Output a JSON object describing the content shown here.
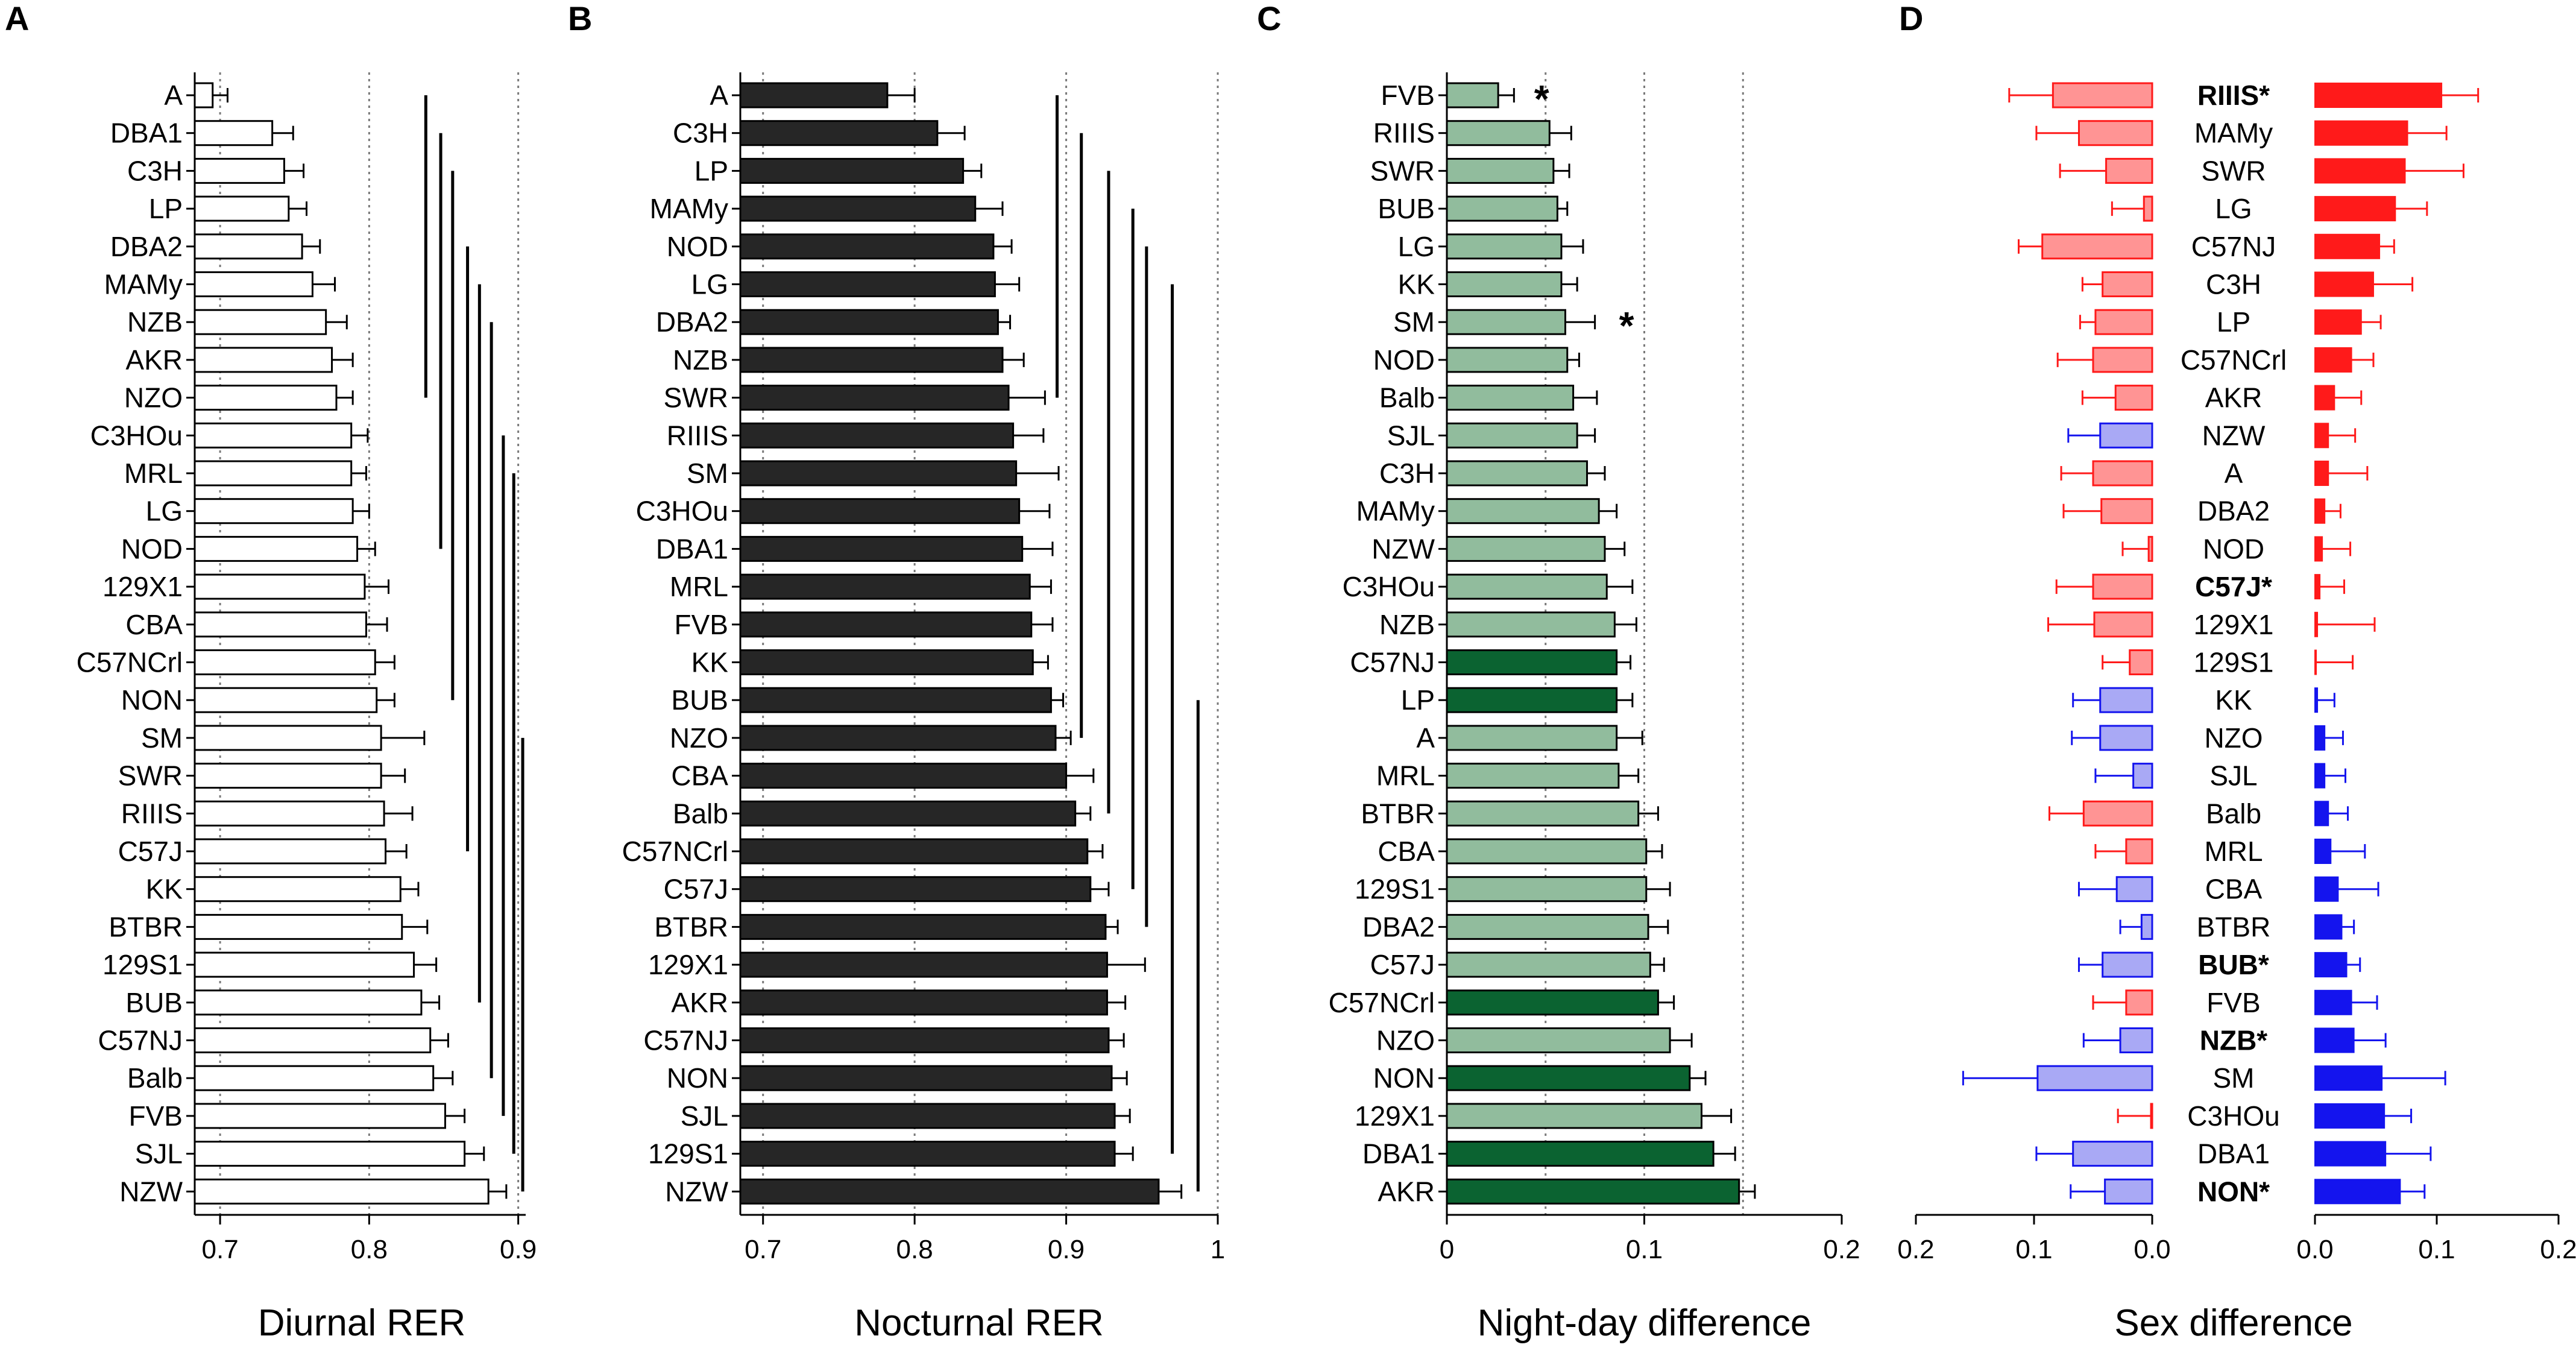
{
  "chart_data": [
    {
      "panel": "A",
      "type": "bar",
      "orientation": "horizontal",
      "xlabel": "Diurnal RER",
      "xlim": [
        0.685,
        0.905
      ],
      "ticks": [
        0.7,
        0.8,
        0.9
      ],
      "tick_labels": [
        "0.7",
        "0.8",
        "0.9"
      ],
      "gridlines": [
        0.7,
        0.8,
        0.9
      ],
      "bar_fill": "#ffffff",
      "categories": [
        "A",
        "DBA1",
        "C3H",
        "LP",
        "DBA2",
        "MAMy",
        "NZB",
        "AKR",
        "NZO",
        "C3HOu",
        "MRL",
        "LG",
        "NOD",
        "129X1",
        "CBA",
        "C57NCrl",
        "NON",
        "SM",
        "SWR",
        "RIIIS",
        "C57J",
        "KK",
        "BTBR",
        "129S1",
        "BUB",
        "C57NJ",
        "Balb",
        "FVB",
        "SJL",
        "NZW"
      ],
      "values": [
        0.695,
        0.735,
        0.743,
        0.746,
        0.755,
        0.762,
        0.771,
        0.775,
        0.778,
        0.788,
        0.788,
        0.789,
        0.792,
        0.797,
        0.798,
        0.804,
        0.805,
        0.808,
        0.808,
        0.81,
        0.811,
        0.821,
        0.822,
        0.83,
        0.835,
        0.841,
        0.843,
        0.851,
        0.864,
        0.88
      ],
      "errors": [
        0.01,
        0.014,
        0.013,
        0.012,
        0.012,
        0.015,
        0.014,
        0.014,
        0.011,
        0.011,
        0.01,
        0.011,
        0.012,
        0.016,
        0.014,
        0.013,
        0.012,
        0.029,
        0.016,
        0.019,
        0.014,
        0.012,
        0.017,
        0.015,
        0.012,
        0.012,
        0.013,
        0.013,
        0.013,
        0.012
      ],
      "significance_lines": [
        {
          "x": 0.838,
          "from": "A",
          "to": "NZO"
        },
        {
          "x": 0.848,
          "from": "DBA1",
          "to": "NOD"
        },
        {
          "x": 0.856,
          "from": "C3H",
          "to": "NON"
        },
        {
          "x": 0.866,
          "from": "DBA2",
          "to": "C57J"
        },
        {
          "x": 0.874,
          "from": "MAMy",
          "to": "BUB"
        },
        {
          "x": 0.882,
          "from": "NZB",
          "to": "Balb"
        },
        {
          "x": 0.89,
          "from": "C3HOu",
          "to": "FVB"
        },
        {
          "x": 0.897,
          "from": "MRL",
          "to": "SJL"
        },
        {
          "x": 0.903,
          "from": "SM",
          "to": "NZW"
        }
      ]
    },
    {
      "panel": "B",
      "type": "bar",
      "orientation": "horizontal",
      "xlabel": "Nocturnal RER",
      "xlim": [
        0.685,
        1.0
      ],
      "ticks": [
        0.7,
        0.8,
        0.9,
        1.0
      ],
      "tick_labels": [
        "0.7",
        "0.8",
        "0.9",
        "1"
      ],
      "gridlines": [
        0.7,
        0.8,
        0.9,
        1.0
      ],
      "bar_fill": "#262626",
      "categories": [
        "A",
        "C3H",
        "LP",
        "MAMy",
        "NOD",
        "LG",
        "DBA2",
        "NZB",
        "SWR",
        "RIIIS",
        "SM",
        "C3HOu",
        "DBA1",
        "MRL",
        "FVB",
        "KK",
        "BUB",
        "NZO",
        "CBA",
        "Balb",
        "C57NCrl",
        "C57J",
        "BTBR",
        "129X1",
        "AKR",
        "C57NJ",
        "NON",
        "SJL",
        "129S1",
        "NZW"
      ],
      "values": [
        0.782,
        0.815,
        0.832,
        0.84,
        0.852,
        0.853,
        0.855,
        0.858,
        0.862,
        0.865,
        0.867,
        0.869,
        0.871,
        0.876,
        0.877,
        0.878,
        0.89,
        0.893,
        0.9,
        0.906,
        0.914,
        0.916,
        0.926,
        0.927,
        0.927,
        0.928,
        0.93,
        0.932,
        0.932,
        0.961
      ],
      "errors": [
        0.018,
        0.018,
        0.012,
        0.018,
        0.012,
        0.016,
        0.008,
        0.014,
        0.024,
        0.02,
        0.028,
        0.02,
        0.02,
        0.014,
        0.014,
        0.01,
        0.008,
        0.01,
        0.018,
        0.01,
        0.01,
        0.012,
        0.008,
        0.025,
        0.012,
        0.01,
        0.01,
        0.01,
        0.012,
        0.015
      ],
      "significance_lines": [
        {
          "x": 0.894,
          "from": "A",
          "to": "SWR"
        },
        {
          "x": 0.91,
          "from": "C3H",
          "to": "NZO"
        },
        {
          "x": 0.928,
          "from": "LP",
          "to": "Balb"
        },
        {
          "x": 0.944,
          "from": "MAMy",
          "to": "C57J"
        },
        {
          "x": 0.953,
          "from": "NOD",
          "to": "BTBR"
        },
        {
          "x": 0.97,
          "from": "LG",
          "to": "129S1"
        },
        {
          "x": 0.987,
          "from": "BUB",
          "to": "NZW"
        }
      ]
    },
    {
      "panel": "C",
      "type": "bar",
      "orientation": "horizontal",
      "xlabel": "Night-day difference",
      "xlim": [
        0.0,
        0.2
      ],
      "ticks": [
        0.0,
        0.1,
        0.2
      ],
      "tick_labels": [
        "0",
        "0.1",
        "0.2"
      ],
      "gridlines": [
        0.05,
        0.1,
        0.15
      ],
      "colors": {
        "light": "#91bc9d",
        "dark": "#0b6331"
      },
      "categories": [
        "FVB",
        "RIIIS",
        "SWR",
        "BUB",
        "LG",
        "KK",
        "SM",
        "NOD",
        "Balb",
        "SJL",
        "C3H",
        "MAMy",
        "NZW",
        "C3HOu",
        "NZB",
        "C57NJ",
        "LP",
        "A",
        "MRL",
        "BTBR",
        "CBA",
        "129S1",
        "DBA2",
        "C57J",
        "C57NCrl",
        "NZO",
        "NON",
        "129X1",
        "DBA1",
        "AKR"
      ],
      "values": [
        0.026,
        0.052,
        0.054,
        0.056,
        0.058,
        0.058,
        0.06,
        0.061,
        0.064,
        0.066,
        0.071,
        0.077,
        0.08,
        0.081,
        0.085,
        0.086,
        0.086,
        0.086,
        0.087,
        0.097,
        0.101,
        0.101,
        0.102,
        0.103,
        0.107,
        0.113,
        0.123,
        0.129,
        0.135,
        0.148
      ],
      "errors": [
        0.008,
        0.011,
        0.008,
        0.005,
        0.011,
        0.008,
        0.015,
        0.006,
        0.012,
        0.009,
        0.009,
        0.009,
        0.01,
        0.013,
        0.011,
        0.007,
        0.008,
        0.013,
        0.01,
        0.01,
        0.008,
        0.012,
        0.01,
        0.007,
        0.008,
        0.011,
        0.008,
        0.015,
        0.011,
        0.008
      ],
      "dark_bars": [
        "C57NJ",
        "LP",
        "C57NCrl",
        "NON",
        "DBA1",
        "AKR"
      ],
      "annotations": [
        {
          "text": "*",
          "category": "FVB",
          "x": 0.048
        },
        {
          "text": "*",
          "category": "SM",
          "x": 0.091
        }
      ]
    },
    {
      "panel": "D",
      "type": "bar",
      "orientation": "horizontal",
      "xlabel": "Sex difference",
      "xlim_left": [
        0.2,
        0.0
      ],
      "xlim_right": [
        0.0,
        0.2
      ],
      "ticks_left": [
        "0.2",
        "0.1",
        "0.0"
      ],
      "ticks_right": [
        "0.0",
        "0.1",
        "0.2"
      ],
      "colors": {
        "red": "#ff1a1a",
        "red_light": "#ff9494",
        "blue": "#1414ee",
        "blue_light": "#a9a9f5"
      },
      "categories": [
        "RIIIS*",
        "MAMy",
        "SWR",
        "LG",
        "C57NJ",
        "C3H",
        "LP",
        "C57NCrl",
        "AKR",
        "NZW",
        "A",
        "DBA2",
        "NOD",
        "C57J*",
        "129X1",
        "129S1",
        "KK",
        "NZO",
        "SJL",
        "Balb",
        "MRL",
        "CBA",
        "BTBR",
        "BUB*",
        "FVB",
        "NZB*",
        "SM",
        "C3HOu",
        "DBA1",
        "NON*"
      ],
      "bold": [
        true,
        false,
        false,
        false,
        false,
        false,
        false,
        false,
        false,
        false,
        false,
        false,
        false,
        true,
        false,
        false,
        false,
        false,
        false,
        false,
        false,
        false,
        false,
        true,
        false,
        true,
        false,
        false,
        false,
        true
      ],
      "right_values": [
        0.104,
        0.076,
        0.074,
        0.066,
        0.053,
        0.048,
        0.038,
        0.03,
        0.016,
        0.011,
        0.011,
        0.008,
        0.006,
        0.004,
        0.002,
        0.001,
        0.002,
        0.008,
        0.008,
        0.011,
        0.013,
        0.019,
        0.022,
        0.026,
        0.03,
        0.032,
        0.055,
        0.057,
        0.058,
        0.07
      ],
      "right_errors": [
        0.03,
        0.032,
        0.048,
        0.026,
        0.012,
        0.032,
        0.016,
        0.018,
        0.022,
        0.022,
        0.032,
        0.013,
        0.023,
        0.02,
        0.047,
        0.03,
        0.014,
        0.015,
        0.017,
        0.016,
        0.028,
        0.033,
        0.01,
        0.011,
        0.021,
        0.026,
        0.052,
        0.022,
        0.037,
        0.02
      ],
      "right_colors": [
        "red",
        "red",
        "red",
        "red",
        "red",
        "red",
        "red",
        "red",
        "red",
        "red",
        "red",
        "red",
        "red",
        "red",
        "red",
        "red",
        "blue",
        "blue",
        "blue",
        "blue",
        "blue",
        "blue",
        "blue",
        "blue",
        "blue",
        "blue",
        "blue",
        "blue",
        "blue",
        "blue"
      ],
      "left_values": [
        0.084,
        0.062,
        0.039,
        0.007,
        0.093,
        0.042,
        0.048,
        0.05,
        0.031,
        0.044,
        0.05,
        0.043,
        0.003,
        0.05,
        0.049,
        0.019,
        0.044,
        0.044,
        0.016,
        0.058,
        0.022,
        0.03,
        0.009,
        0.042,
        0.022,
        0.027,
        0.097,
        0.001,
        0.067,
        0.04
      ],
      "left_errors": [
        0.037,
        0.036,
        0.039,
        0.027,
        0.02,
        0.017,
        0.013,
        0.03,
        0.028,
        0.027,
        0.027,
        0.032,
        0.022,
        0.031,
        0.039,
        0.023,
        0.023,
        0.024,
        0.032,
        0.029,
        0.026,
        0.032,
        0.018,
        0.02,
        0.028,
        0.031,
        0.063,
        0.028,
        0.031,
        0.029
      ],
      "left_colors": [
        "red",
        "red",
        "red",
        "red",
        "red",
        "red",
        "red",
        "red",
        "red",
        "blue",
        "red",
        "red",
        "red",
        "red",
        "red",
        "red",
        "blue",
        "blue",
        "blue",
        "red",
        "red",
        "blue",
        "blue",
        "blue",
        "red",
        "blue",
        "blue",
        "red",
        "blue",
        "blue"
      ]
    }
  ],
  "panel_letters": {
    "A": "A",
    "B": "B",
    "C": "C",
    "D": "D"
  }
}
